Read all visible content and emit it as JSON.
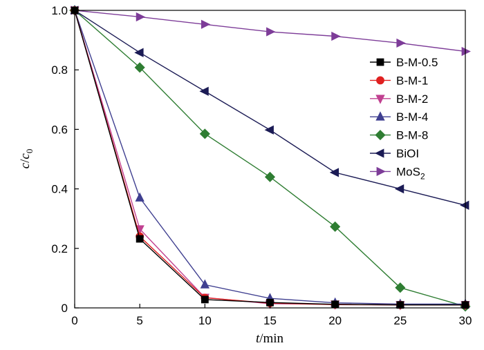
{
  "chart_data": {
    "type": "line",
    "title": "",
    "xlabel": "t/min",
    "ylabel": "c/c0",
    "xlim": [
      0,
      30
    ],
    "ylim": [
      0,
      1.0
    ],
    "xticks": [
      0,
      5,
      10,
      15,
      20,
      25,
      30
    ],
    "yticks": [
      0,
      0.2,
      0.4,
      0.6,
      0.8,
      1.0
    ],
    "xtick_labels": [
      "0",
      "5",
      "10",
      "15",
      "20",
      "25",
      "30"
    ],
    "ytick_labels": [
      "0",
      "0.2",
      "0.4",
      "0.6",
      "0.8",
      "1.0"
    ],
    "grid": false,
    "legend_position": "top-right",
    "x": [
      0,
      5,
      10,
      15,
      20,
      25,
      30
    ],
    "series": [
      {
        "name": "B-M-0.5",
        "color": "#000000",
        "marker": "square",
        "values": [
          1.0,
          0.232,
          0.028,
          0.018,
          0.012,
          0.01,
          0.01
        ]
      },
      {
        "name": "B-M-1",
        "color": "#e02020",
        "marker": "circle",
        "values": [
          1.0,
          0.24,
          0.034,
          0.016,
          0.011,
          0.01,
          0.01
        ]
      },
      {
        "name": "B-M-2",
        "color": "#c04090",
        "marker": "triangle-down",
        "values": [
          1.0,
          0.265,
          0.035,
          0.014,
          0.012,
          0.01,
          0.01
        ]
      },
      {
        "name": "B-M-4",
        "color": "#3f3f90",
        "marker": "triangle-up",
        "values": [
          1.0,
          0.37,
          0.078,
          0.032,
          0.017,
          0.013,
          0.013
        ]
      },
      {
        "name": "B-M-8",
        "color": "#2e7d32",
        "marker": "diamond",
        "values": [
          1.0,
          0.808,
          0.585,
          0.44,
          0.273,
          0.068,
          0.005
        ]
      },
      {
        "name": "BiOI",
        "color": "#1b1b55",
        "marker": "triangle-left",
        "values": [
          1.0,
          0.858,
          0.728,
          0.598,
          0.455,
          0.4,
          0.345
        ]
      },
      {
        "name": "MoS2",
        "color": "#7d3c98",
        "marker": "triangle-right",
        "values": [
          1.0,
          0.978,
          0.953,
          0.928,
          0.913,
          0.89,
          0.862
        ]
      }
    ]
  }
}
